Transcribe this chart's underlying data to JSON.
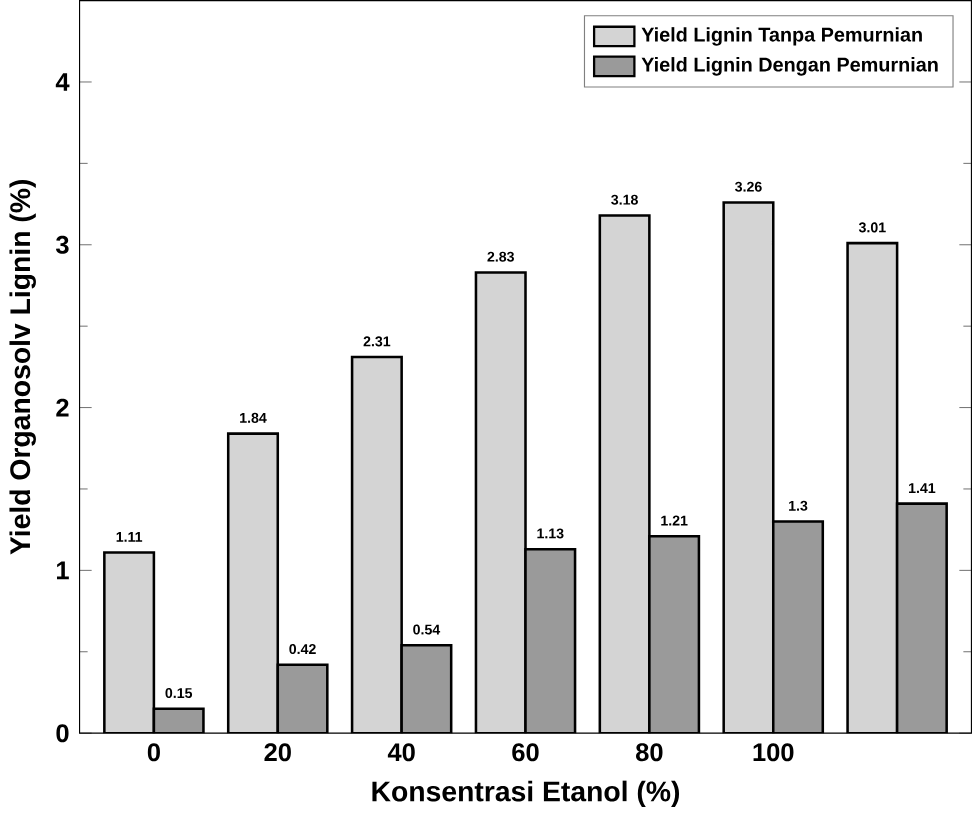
{
  "chart_data": {
    "type": "bar",
    "xlabel": "Konsentrasi Etanol (%)",
    "ylabel": "Yield Organosolv Lignin (%)",
    "categories": [
      "0",
      "20",
      "40",
      "60",
      "80",
      "100",
      null
    ],
    "series": [
      {
        "name": "Yield Lignin Tanpa  Pemurnian",
        "color": "#d4d4d4",
        "values": [
          1.11,
          1.84,
          2.31,
          2.83,
          3.18,
          3.26,
          3.01
        ]
      },
      {
        "name": "Yield Lignin Dengan Pemurnian",
        "color": "#9a9a9a",
        "values": [
          0.15,
          0.42,
          0.54,
          1.13,
          1.21,
          1.3,
          1.41
        ]
      }
    ],
    "ylim": [
      0,
      4.5
    ],
    "yticks": [
      0,
      1,
      2,
      3,
      4
    ],
    "data_labels": true,
    "legend": "top right",
    "grid": false
  }
}
